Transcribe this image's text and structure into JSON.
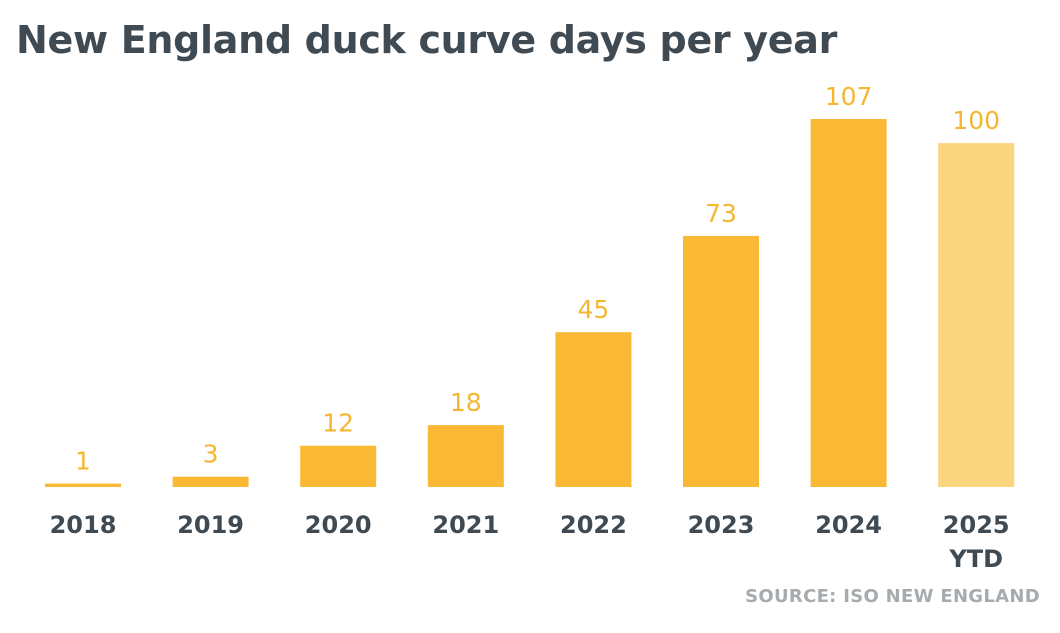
{
  "title": "New England duck curve days per year",
  "source": "SOURCE: ISO NEW ENGLAND",
  "colors": {
    "bar": "#f9b934",
    "bar_ytd": "#fcd57f",
    "value_label": "#f5b731",
    "category_label": "#3f4a53",
    "title": "#3f4a53",
    "source": "#a6abaf"
  },
  "chart_data": {
    "type": "bar",
    "title": "New England duck curve days per year",
    "categories": [
      [
        "2018"
      ],
      [
        "2019"
      ],
      [
        "2020"
      ],
      [
        "2021"
      ],
      [
        "2022"
      ],
      [
        "2023"
      ],
      [
        "2024"
      ],
      [
        "2025",
        "YTD"
      ]
    ],
    "values": [
      1,
      3,
      12,
      18,
      45,
      73,
      107,
      100
    ],
    "highlight": [
      false,
      false,
      false,
      false,
      false,
      false,
      false,
      true
    ],
    "ylim": [
      0,
      107
    ],
    "grid": false,
    "legend": "none",
    "xlabel": "",
    "ylabel": ""
  }
}
